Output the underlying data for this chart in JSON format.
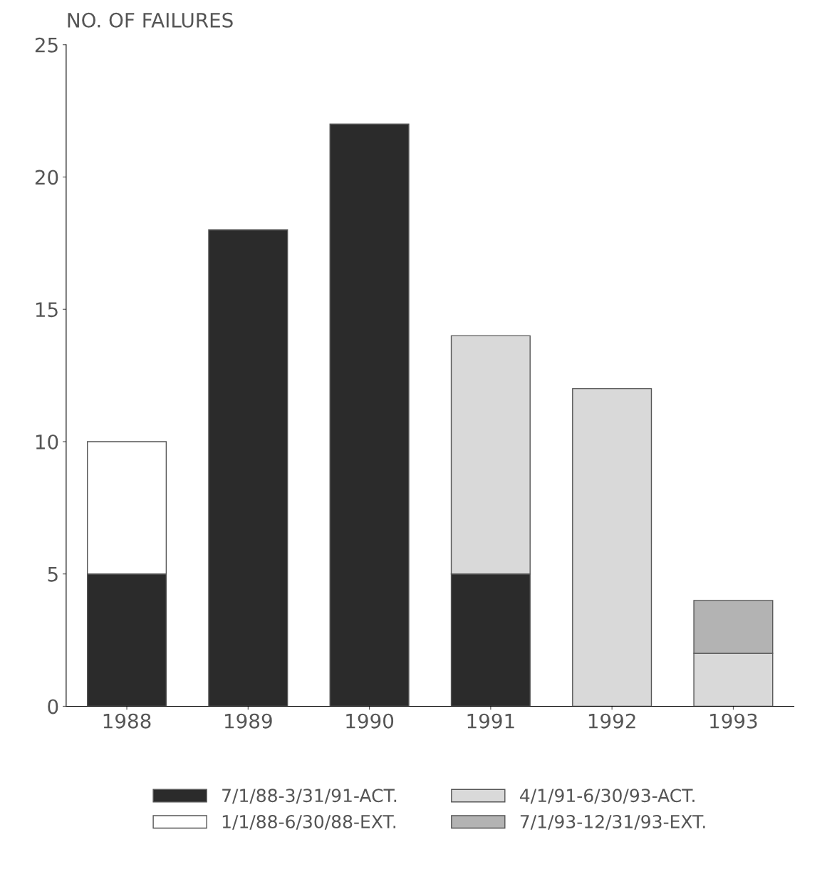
{
  "chart_data": {
    "type": "bar",
    "stacked": true,
    "ylabel": "NO. OF FAILURES",
    "categories": [
      "1988",
      "1989",
      "1990",
      "1991",
      "1992",
      "1993"
    ],
    "series": [
      {
        "name": "7/1/88-3/31/91-ACT.",
        "color": "#2b2b2b",
        "values": [
          5,
          18,
          22,
          5,
          null,
          null
        ]
      },
      {
        "name": "1/1/88-6/30/88-EXT.",
        "color": "#ffffff",
        "values": [
          5,
          null,
          null,
          null,
          null,
          null
        ]
      },
      {
        "name": "4/1/91-6/30/93-ACT.",
        "color": "#d9d9d9",
        "values": [
          null,
          null,
          null,
          9,
          12,
          2
        ]
      },
      {
        "name": "7/1/93-12/31/93-EXT.",
        "color": "#b3b3b3",
        "values": [
          null,
          null,
          null,
          null,
          null,
          2
        ]
      }
    ],
    "ylim": [
      0,
      25
    ],
    "yticks": [
      0,
      5,
      10,
      15,
      20,
      25
    ],
    "grid": false,
    "legend": "bottom"
  }
}
